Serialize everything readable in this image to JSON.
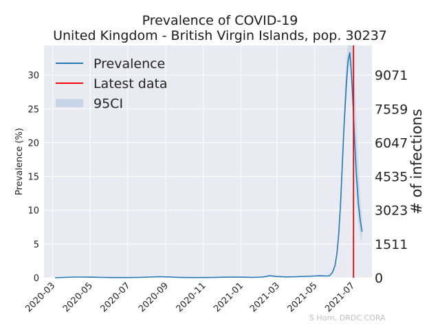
{
  "chart_data": {
    "type": "line",
    "title": "Prevalence of COVID-19",
    "subtitle": "United Kingdom - British Virgin Islands, pop. 30237",
    "ylabel": "Prevalence (%)",
    "y2label": "# of infections",
    "credit": "S Horn, DRDC CORA",
    "x_ticks": [
      "2020-03",
      "2020-05",
      "2020-07",
      "2020-09",
      "2020-11",
      "2021-01",
      "2021-03",
      "2021-05",
      "2021-07"
    ],
    "y_ticks": [
      0,
      5,
      10,
      15,
      20,
      25,
      30
    ],
    "y2_ticks": [
      "0",
      "1511",
      "3023",
      "4535",
      "6047",
      "7559",
      "9071"
    ],
    "xlim": [
      "2020-02-16",
      "2021-08-02"
    ],
    "ylim": [
      0,
      34.4
    ],
    "grid": true,
    "legend_position": "top-left",
    "legend": [
      "Prevalence",
      "Latest data",
      "95CI"
    ],
    "colors": {
      "prevalence": "#1f77b4",
      "latest": "#ff0000",
      "ci": "#c7d5e6",
      "background": "#eaeaf2",
      "grid": "#ffffff"
    },
    "latest_date": "2021-07-03",
    "series": [
      {
        "name": "Prevalence",
        "x": [
          "2020-03-05",
          "2020-03-20",
          "2020-04-05",
          "2020-04-20",
          "2020-05-05",
          "2020-05-20",
          "2020-06-05",
          "2020-06-20",
          "2020-07-05",
          "2020-07-20",
          "2020-08-05",
          "2020-08-20",
          "2020-09-05",
          "2020-09-20",
          "2020-10-05",
          "2020-10-20",
          "2020-11-05",
          "2020-11-20",
          "2020-12-05",
          "2020-12-20",
          "2021-01-05",
          "2021-01-20",
          "2021-02-05",
          "2021-02-17",
          "2021-03-01",
          "2021-03-15",
          "2021-04-01",
          "2021-04-15",
          "2021-04-29",
          "2021-05-10",
          "2021-05-20",
          "2021-05-25",
          "2021-05-30",
          "2021-06-03",
          "2021-06-06",
          "2021-06-09",
          "2021-06-12",
          "2021-06-15",
          "2021-06-18",
          "2021-06-21",
          "2021-06-24",
          "2021-06-27",
          "2021-06-29",
          "2021-07-01",
          "2021-07-03",
          "2021-07-05",
          "2021-07-08",
          "2021-07-11",
          "2021-07-14",
          "2021-07-17"
        ],
        "values": [
          0.0,
          0.05,
          0.1,
          0.1,
          0.08,
          0.05,
          0.03,
          0.03,
          0.03,
          0.05,
          0.1,
          0.15,
          0.12,
          0.06,
          0.03,
          0.03,
          0.03,
          0.05,
          0.08,
          0.1,
          0.08,
          0.05,
          0.1,
          0.3,
          0.18,
          0.12,
          0.15,
          0.2,
          0.25,
          0.3,
          0.25,
          0.3,
          0.8,
          1.8,
          3.5,
          6.5,
          11,
          17,
          23,
          28,
          32,
          33.3,
          31,
          28,
          24,
          20,
          15,
          11,
          8.5,
          6.8
        ]
      }
    ],
    "ci_band": {
      "x": [
        "2021-06-15",
        "2021-06-18",
        "2021-06-21",
        "2021-06-24",
        "2021-06-27",
        "2021-06-29",
        "2021-07-01",
        "2021-07-03",
        "2021-07-05",
        "2021-07-08",
        "2021-07-11",
        "2021-07-14",
        "2021-07-17"
      ],
      "upper": [
        17,
        25,
        32,
        34.4,
        34.4,
        34.4,
        34.4,
        33,
        29,
        23,
        17,
        12,
        9
      ],
      "lower": [
        17,
        22,
        26,
        30,
        32,
        29,
        25,
        20,
        16,
        11,
        8,
        6,
        5
      ]
    }
  }
}
